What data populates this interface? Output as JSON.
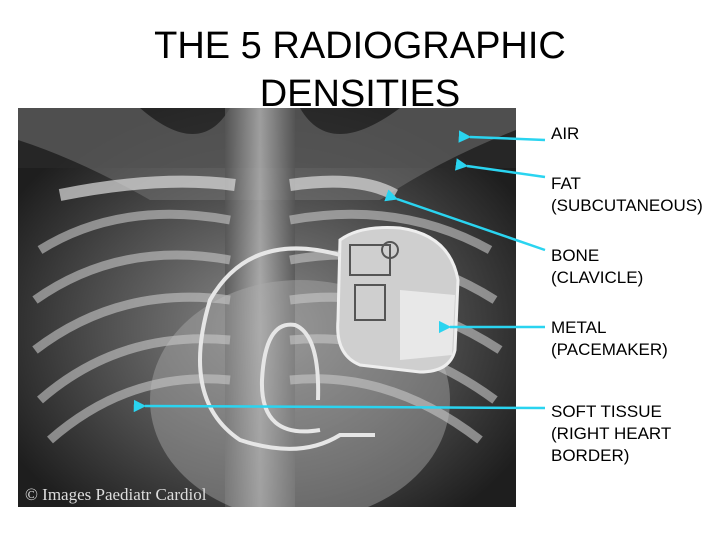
{
  "title": {
    "lines": [
      "THE 5 RADIOGRAPHIC",
      "DENSITIES"
    ]
  },
  "image": {
    "credit": "© Images Paediatr Cardiol"
  },
  "labels": [
    {
      "lines": [
        "AIR"
      ]
    },
    {
      "lines": [
        "FAT",
        "(SUBCUTANEOUS)"
      ]
    },
    {
      "lines": [
        "BONE",
        "(CLAVICLE)"
      ]
    },
    {
      "lines": [
        "METAL",
        "(PACEMAKER)"
      ]
    },
    {
      "lines": [
        "SOFT TISSUE",
        "(RIGHT HEART",
        "BORDER)"
      ]
    }
  ]
}
